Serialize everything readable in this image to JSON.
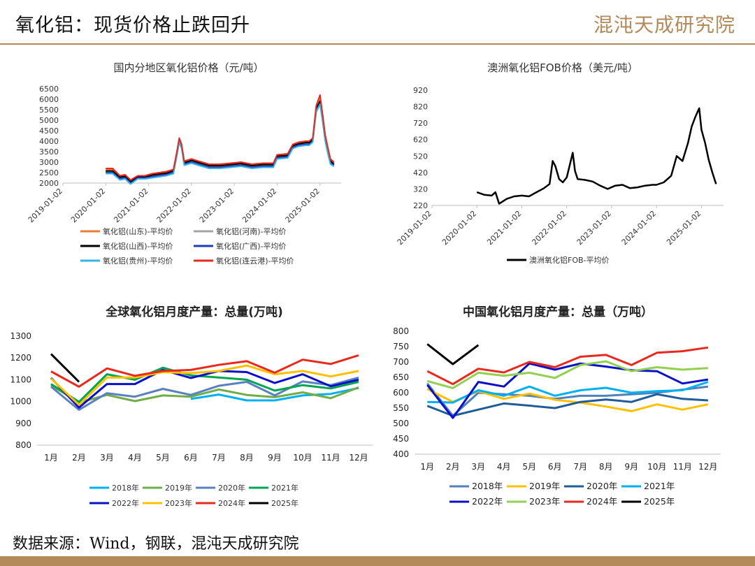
{
  "header": {
    "title": "氧化铝：现货价格止跌回升",
    "brand": "混沌天成研究院"
  },
  "footer": {
    "source": "数据来源：Wind，钢联，混沌天成研究院"
  },
  "chart_data": [
    {
      "id": "domestic",
      "type": "line",
      "title": "国内分地区氧化铝价格（元/吨）",
      "x_ticks": [
        "2019-01-02",
        "2020-01-02",
        "2021-01-02",
        "2022-01-02",
        "2023-01-02",
        "2024-01-02",
        "2025-01-02"
      ],
      "xlim": [
        "2019-01-02",
        "2025-07-01"
      ],
      "ylim": [
        2000,
        6500
      ],
      "y_ticks": [
        2000,
        2500,
        3000,
        3500,
        4000,
        4500,
        5000,
        5500,
        6000,
        6500
      ],
      "x": [
        "2020-01-02",
        "2020-03-01",
        "2020-05-01",
        "2020-06-15",
        "2020-08-01",
        "2020-10-01",
        "2020-12-01",
        "2021-02-01",
        "2021-04-01",
        "2021-06-01",
        "2021-08-01",
        "2021-09-01",
        "2021-09-20",
        "2021-10-10",
        "2021-11-01",
        "2021-12-01",
        "2022-01-02",
        "2022-03-01",
        "2022-04-01",
        "2022-06-01",
        "2022-09-01",
        "2022-12-01",
        "2023-03-01",
        "2023-06-01",
        "2023-09-01",
        "2023-12-01",
        "2024-01-02",
        "2024-04-01",
        "2024-05-15",
        "2024-07-01",
        "2024-09-01",
        "2024-10-01",
        "2024-11-01",
        "2024-12-01",
        "2025-01-02",
        "2025-01-20",
        "2025-02-15",
        "2025-03-10",
        "2025-04-01",
        "2025-05-01"
      ],
      "series": [
        {
          "name": "氧化铝(山东)-平均价",
          "color": "#ed7d31",
          "values": [
            2650,
            2650,
            2300,
            2350,
            2100,
            2300,
            2300,
            2400,
            2450,
            2500,
            2600,
            3500,
            4100,
            3800,
            3000,
            3050,
            3100,
            3000,
            2950,
            2850,
            2850,
            2900,
            2950,
            2850,
            2900,
            2900,
            3300,
            3350,
            3800,
            3900,
            3950,
            3950,
            4100,
            5600,
            6000,
            5300,
            4200,
            3600,
            3100,
            2950
          ]
        },
        {
          "name": "氧化铝(河南)-平均价",
          "color": "#a5a5a5",
          "values": [
            2550,
            2550,
            2250,
            2300,
            2050,
            2300,
            2250,
            2350,
            2400,
            2450,
            2550,
            3450,
            4050,
            3750,
            2950,
            3000,
            3050,
            2950,
            2900,
            2800,
            2800,
            2850,
            2900,
            2800,
            2850,
            2850,
            3250,
            3300,
            3750,
            3850,
            3900,
            3900,
            4050,
            5500,
            5850,
            5200,
            4100,
            3500,
            3000,
            2900
          ]
        },
        {
          "name": "氧化铝(山西)-平均价",
          "color": "#000000",
          "values": [
            2580,
            2580,
            2280,
            2320,
            2060,
            2300,
            2280,
            2380,
            2430,
            2470,
            2580,
            3480,
            4080,
            3780,
            2980,
            3020,
            3080,
            2980,
            2930,
            2830,
            2830,
            2880,
            2930,
            2830,
            2880,
            2880,
            3280,
            3320,
            3780,
            3870,
            3930,
            3930,
            4080,
            5550,
            5900,
            5250,
            4150,
            3550,
            3050,
            2900
          ]
        },
        {
          "name": "氧化铝(广西)-平均价",
          "color": "#1f3bbf",
          "values": [
            2500,
            2500,
            2200,
            2250,
            2000,
            2250,
            2250,
            2300,
            2350,
            2400,
            2500,
            3400,
            4000,
            3700,
            2900,
            2950,
            3000,
            2900,
            2850,
            2750,
            2750,
            2800,
            2850,
            2750,
            2800,
            2800,
            3200,
            3250,
            3700,
            3800,
            3850,
            3850,
            4000,
            5450,
            5800,
            5150,
            4050,
            3450,
            2950,
            2850
          ]
        },
        {
          "name": "氧化铝(贵州)-平均价",
          "color": "#33b5e5",
          "values": [
            2450,
            2450,
            2150,
            2200,
            1950,
            2200,
            2200,
            2250,
            2300,
            2350,
            2450,
            3350,
            3950,
            3650,
            2850,
            2900,
            2950,
            2850,
            2800,
            2700,
            2700,
            2750,
            2800,
            2700,
            2750,
            2750,
            3150,
            3200,
            3650,
            3750,
            3800,
            3800,
            3950,
            5400,
            5750,
            5100,
            4000,
            3400,
            2900,
            2800
          ]
        },
        {
          "name": "氧化铝(连云港)-平均价",
          "color": "#e8291d",
          "values": [
            2700,
            2700,
            2350,
            2400,
            2150,
            2350,
            2350,
            2450,
            2500,
            2550,
            2650,
            3550,
            4150,
            3850,
            3050,
            3100,
            3150,
            3050,
            3000,
            2900,
            2900,
            2950,
            3000,
            2900,
            2950,
            2950,
            3350,
            3400,
            3850,
            3950,
            4000,
            4000,
            4150,
            5700,
            6200,
            5450,
            4300,
            3700,
            3150,
            3000
          ]
        }
      ]
    },
    {
      "id": "fob",
      "type": "line",
      "title": "澳洲氧化铝FOB价格（美元/吨）",
      "x_ticks": [
        "2019-01-02",
        "2020-01-02",
        "2021-01-02",
        "2022-01-02",
        "2023-01-02",
        "2024-01-02",
        "2025-01-02"
      ],
      "xlim": [
        "2019-01-02",
        "2025-07-01"
      ],
      "ylim": [
        220,
        920
      ],
      "y_ticks": [
        220,
        320,
        420,
        520,
        620,
        720,
        820,
        920
      ],
      "x": [
        "2020-01-02",
        "2020-03-01",
        "2020-05-01",
        "2020-06-01",
        "2020-07-01",
        "2020-09-01",
        "2020-11-01",
        "2021-01-02",
        "2021-03-01",
        "2021-05-01",
        "2021-07-01",
        "2021-08-15",
        "2021-09-10",
        "2021-10-01",
        "2021-11-01",
        "2021-12-01",
        "2022-01-02",
        "2022-02-20",
        "2022-03-10",
        "2022-04-01",
        "2022-06-01",
        "2022-08-01",
        "2022-10-01",
        "2022-12-01",
        "2023-02-01",
        "2023-04-01",
        "2023-06-01",
        "2023-08-01",
        "2023-10-01",
        "2023-12-01",
        "2024-01-02",
        "2024-03-01",
        "2024-05-01",
        "2024-06-15",
        "2024-08-01",
        "2024-09-15",
        "2024-10-15",
        "2024-11-15",
        "2024-12-15",
        "2025-01-02",
        "2025-02-01",
        "2025-03-01",
        "2025-04-01",
        "2025-05-01"
      ],
      "series": [
        {
          "name": "澳洲氧化铝FOB-平均价",
          "color": "#000000",
          "values": [
            300,
            285,
            280,
            300,
            230,
            260,
            275,
            280,
            275,
            300,
            325,
            350,
            490,
            460,
            380,
            360,
            390,
            540,
            430,
            380,
            375,
            365,
            340,
            320,
            340,
            345,
            325,
            330,
            340,
            345,
            345,
            360,
            400,
            520,
            490,
            600,
            700,
            760,
            810,
            680,
            600,
            500,
            420,
            350
          ]
        }
      ]
    },
    {
      "id": "global",
      "type": "line",
      "title": "全球氧化铝月度产量：总量(万吨)",
      "categories": [
        "1月",
        "2月",
        "3月",
        "4月",
        "5月",
        "6月",
        "7月",
        "8月",
        "9月",
        "10月",
        "11月",
        "12月"
      ],
      "ylim": [
        800,
        1300
      ],
      "y_ticks": [
        800,
        900,
        1000,
        1100,
        1200,
        1300
      ],
      "series": [
        {
          "name": "2018年",
          "color": "#00b0f0",
          "values": [
            null,
            null,
            null,
            null,
            null,
            1012,
            1032,
            1005,
            1005,
            1028,
            1035,
            1062
          ]
        },
        {
          "name": "2019年",
          "color": "#70ad47",
          "values": [
            1075,
            995,
            1030,
            1002,
            1028,
            1022,
            1055,
            1030,
            1020,
            1042,
            1015,
            1065
          ]
        },
        {
          "name": "2020年",
          "color": "#5b80c0",
          "values": [
            1068,
            962,
            1038,
            1022,
            1058,
            1030,
            1072,
            1090,
            1028,
            1092,
            1075,
            1110
          ]
        },
        {
          "name": "2021年",
          "color": "#00a550",
          "values": [
            1080,
            998,
            1125,
            1100,
            1155,
            1120,
            1110,
            1100,
            1050,
            1075,
            1060,
            1090
          ]
        },
        {
          "name": "2022年",
          "color": "#0a10c8",
          "values": [
            1108,
            972,
            1080,
            1080,
            1145,
            1108,
            1140,
            1135,
            1085,
            1125,
            1070,
            1100
          ]
        },
        {
          "name": "2023年",
          "color": "#ffc000",
          "values": [
            1105,
            985,
            1110,
            1110,
            1135,
            1130,
            1140,
            1165,
            1125,
            1140,
            1115,
            1140
          ]
        },
        {
          "name": "2024年",
          "color": "#e8291d",
          "values": [
            1138,
            1068,
            1152,
            1118,
            1140,
            1145,
            1168,
            1185,
            1132,
            1192,
            1172,
            1212
          ]
        },
        {
          "name": "2025年",
          "color": "#000000",
          "values": [
            1218,
            1090,
            null,
            null,
            null,
            null,
            null,
            null,
            null,
            null,
            null,
            null
          ]
        }
      ]
    },
    {
      "id": "china",
      "type": "line",
      "title": "中国氧化铝月度产量：总量（万吨）",
      "categories": [
        "1月",
        "2月",
        "3月",
        "4月",
        "5月",
        "6月",
        "7月",
        "8月",
        "9月",
        "10月",
        "11月",
        "12月"
      ],
      "ylim": [
        400,
        800
      ],
      "y_ticks": [
        400,
        450,
        500,
        550,
        600,
        650,
        700,
        750,
        800
      ],
      "series": [
        {
          "name": "2018年",
          "color": "#4f81bd",
          "values": [
            630,
            525,
            600,
            595,
            590,
            580,
            590,
            590,
            595,
            600,
            610,
            620
          ]
        },
        {
          "name": "2019年",
          "color": "#ffc000",
          "values": [
            612,
            570,
            605,
            580,
            597,
            577,
            568,
            555,
            540,
            562,
            545,
            562
          ]
        },
        {
          "name": "2020年",
          "color": "#1f5c99",
          "values": [
            557,
            525,
            545,
            565,
            558,
            550,
            570,
            578,
            570,
            595,
            580,
            575
          ]
        },
        {
          "name": "2021年",
          "color": "#00b0f0",
          "values": [
            570,
            568,
            608,
            590,
            620,
            590,
            608,
            616,
            600,
            605,
            608,
            635
          ]
        },
        {
          "name": "2022年",
          "color": "#0a10c8",
          "values": [
            625,
            518,
            635,
            620,
            695,
            675,
            695,
            685,
            673,
            670,
            630,
            643
          ]
        },
        {
          "name": "2023年",
          "color": "#92d050",
          "values": [
            638,
            615,
            665,
            655,
            665,
            648,
            690,
            702,
            670,
            683,
            675,
            680
          ]
        },
        {
          "name": "2024年",
          "color": "#e8291d",
          "values": [
            670,
            628,
            678,
            666,
            700,
            683,
            717,
            723,
            690,
            730,
            735,
            747
          ]
        },
        {
          "name": "2025年",
          "color": "#000000",
          "values": [
            758,
            693,
            755,
            null,
            null,
            null,
            null,
            null,
            null,
            null,
            null,
            null
          ]
        }
      ]
    }
  ]
}
